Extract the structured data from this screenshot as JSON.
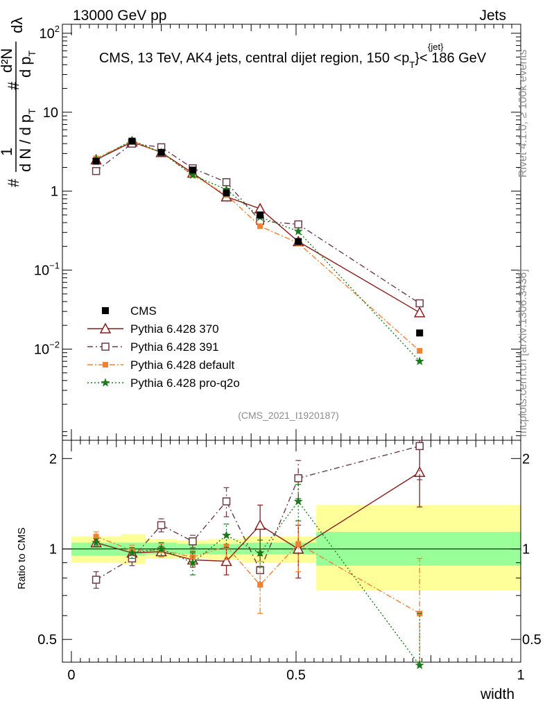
{
  "header": {
    "left": "13000 GeV pp",
    "right": "Jets",
    "title": "CMS, 13 TeV, AK4 jets, central dijet region, 150 <p",
    "title_sup": "{jet}",
    "title_sub": "T",
    "title_tail": "}< 186 GeV",
    "side_top": "Rivet 4.1.0, ≥ 100k events",
    "side_bottom": "mcplots.cern.ch [arXiv:1306.3436]",
    "analysis_id": "(CMS_2021_I1920187)"
  },
  "ylabel_main": {
    "hash1": "#",
    "one": "1",
    "dN": "d N / d p",
    "dN_sub": "T",
    "hash2": "#",
    "d2N": "d²N",
    "dpT": "d p",
    "dpT_sub": "T",
    "dlambda": "dλ"
  },
  "ylabel_ratio": "Ratio to CMS",
  "xlabel": "width",
  "chart_data": {
    "type": "line",
    "x": [
      0.055,
      0.135,
      0.2,
      0.27,
      0.345,
      0.42,
      0.505,
      0.775
    ],
    "xlim": [
      -0.02,
      1.0
    ],
    "main_ylim": [
      0.0007,
      130
    ],
    "main_yscale": "log",
    "main_yticks": [
      {
        "v": 100,
        "base": "10",
        "exp": "2"
      },
      {
        "v": 10,
        "base": "10",
        "exp": ""
      },
      {
        "v": 1,
        "base": "1",
        "exp": ""
      },
      {
        "v": 0.1,
        "base": "10",
        "exp": "−1"
      },
      {
        "v": 0.01,
        "base": "10",
        "exp": "−2"
      }
    ],
    "ratio_ylim": [
      0.42,
      2.3
    ],
    "ratio_yscale": "log",
    "ratio_yticks": [
      {
        "v": 0.5,
        "label": "0.5"
      },
      {
        "v": 1,
        "label": "1"
      },
      {
        "v": 2,
        "label": "2"
      }
    ],
    "xticks": [
      {
        "v": 0,
        "label": "0"
      },
      {
        "v": 0.5,
        "label": "0.5"
      },
      {
        "v": 1,
        "label": "1"
      }
    ],
    "data": {
      "name": "CMS",
      "values": [
        2.4,
        4.3,
        3.1,
        1.85,
        0.95,
        0.5,
        0.23,
        0.016
      ]
    },
    "bands": [
      {
        "x0": 0.0,
        "x1": 0.11,
        "inner": [
          0.95,
          1.05
        ],
        "outer": [
          0.9,
          1.1
        ]
      },
      {
        "x0": 0.11,
        "x1": 0.165,
        "inner": [
          0.95,
          1.05
        ],
        "outer": [
          0.89,
          1.12
        ]
      },
      {
        "x0": 0.165,
        "x1": 0.235,
        "inner": [
          0.96,
          1.05
        ],
        "outer": [
          0.93,
          1.08
        ]
      },
      {
        "x0": 0.235,
        "x1": 0.305,
        "inner": [
          0.96,
          1.04
        ],
        "outer": [
          0.93,
          1.07
        ]
      },
      {
        "x0": 0.305,
        "x1": 0.38,
        "inner": [
          0.96,
          1.04
        ],
        "outer": [
          0.92,
          1.08
        ]
      },
      {
        "x0": 0.38,
        "x1": 0.465,
        "inner": [
          0.96,
          1.05
        ],
        "outer": [
          0.9,
          1.1
        ]
      },
      {
        "x0": 0.465,
        "x1": 0.545,
        "inner": [
          0.96,
          1.05
        ],
        "outer": [
          0.9,
          1.1
        ]
      },
      {
        "x0": 0.545,
        "x1": 1.0,
        "inner": [
          0.88,
          1.14
        ],
        "outer": [
          0.73,
          1.4
        ]
      }
    ],
    "series": [
      {
        "name": "Pythia 6.428 370",
        "color": "#8b1a1a",
        "dash": "",
        "marker": "triangle-open",
        "values": [
          2.5,
          4.2,
          3.1,
          1.7,
          0.85,
          0.6,
          0.23,
          0.029
        ],
        "ratio": [
          1.05,
          0.97,
          0.98,
          0.92,
          0.91,
          1.2,
          1.0,
          1.8
        ],
        "ratio_err": [
          0.03,
          0.04,
          0.04,
          0.05,
          0.09,
          0.2,
          0.2,
          0.42
        ]
      },
      {
        "name": "Pythia 6.428 391",
        "color": "#6b3a4a",
        "dash": "8,4,2,4",
        "marker": "square-open",
        "values": [
          1.8,
          4.0,
          3.6,
          1.95,
          1.3,
          0.42,
          0.38,
          0.038
        ],
        "ratio": [
          0.79,
          0.93,
          1.2,
          1.06,
          1.44,
          0.85,
          1.72,
          2.2
        ],
        "ratio_err": [
          0.05,
          0.05,
          0.06,
          0.05,
          0.16,
          0.1,
          0.25,
          0.5
        ]
      },
      {
        "name": "Pythia 6.428 default",
        "color": "#f28030",
        "dash": "8,3,2,3",
        "marker": "square-filled",
        "values": [
          2.6,
          4.3,
          3.1,
          1.6,
          0.9,
          0.36,
          0.22,
          0.0095
        ],
        "ratio": [
          1.1,
          0.99,
          0.99,
          0.94,
          1.02,
          0.76,
          1.04,
          0.61
        ],
        "ratio_err": [
          0.04,
          0.04,
          0.05,
          0.05,
          0.1,
          0.15,
          0.2,
          0.32
        ]
      },
      {
        "name": "Pythia 6.428 pro-q2o",
        "color": "#1a7a1a",
        "dash": "2,3",
        "marker": "star",
        "values": [
          2.5,
          4.4,
          3.1,
          1.6,
          1.05,
          0.47,
          0.31,
          0.007
        ],
        "ratio": [
          1.05,
          0.97,
          1.0,
          0.9,
          1.11,
          0.97,
          1.44,
          0.41
        ],
        "ratio_err": [
          0.03,
          0.04,
          0.05,
          0.08,
          0.1,
          0.1,
          0.2,
          0.2
        ]
      }
    ]
  }
}
